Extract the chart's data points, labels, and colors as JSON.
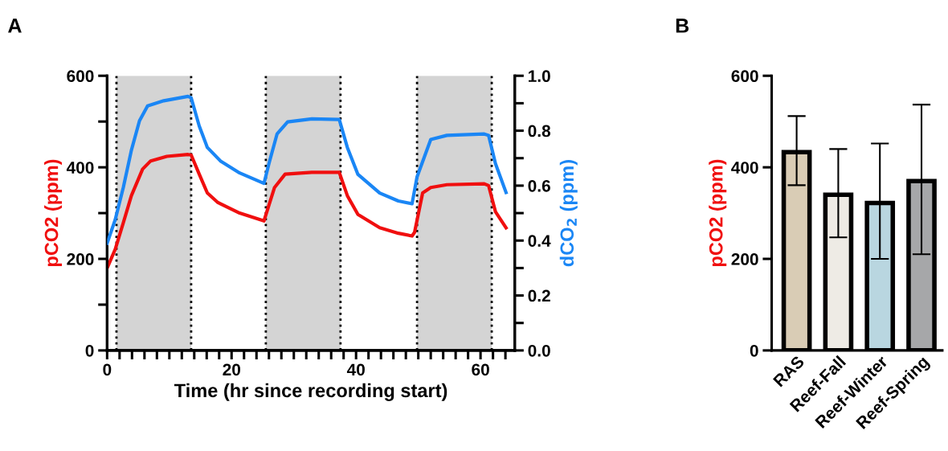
{
  "chart_data": [
    {
      "type": "line",
      "xlabel": "Time (hr since recording start)",
      "ylabel": "pCO2 (ppm)",
      "y2label": "dCO$_{2}$ (ppm)",
      "annotations": [
        "A"
      ],
      "xlim": [
        0,
        65.5
      ],
      "xticks": [
        0,
        {
          "value": 2,
          "label": null
        },
        {
          "value": 4,
          "label": null
        },
        {
          "value": 6,
          "label": null
        },
        {
          "value": 8,
          "label": null
        },
        {
          "value": 10,
          "label": null
        },
        {
          "value": 12,
          "label": null
        },
        {
          "value": 14,
          "label": null
        },
        {
          "value": 16,
          "label": null
        },
        {
          "value": 18,
          "label": null
        },
        20,
        {
          "value": 22,
          "label": null
        },
        {
          "value": 24,
          "label": null
        },
        {
          "value": 26,
          "label": null
        },
        {
          "value": 28,
          "label": null
        },
        {
          "value": 30,
          "label": null
        },
        {
          "value": 32,
          "label": null
        },
        {
          "value": 34,
          "label": null
        },
        {
          "value": 36,
          "label": null
        },
        {
          "value": 38,
          "label": null
        },
        40,
        {
          "value": 42,
          "label": null
        },
        {
          "value": 44,
          "label": null
        },
        {
          "value": 46,
          "label": null
        },
        {
          "value": 48,
          "label": null
        },
        {
          "value": 50,
          "label": null
        },
        {
          "value": 52,
          "label": null
        },
        {
          "value": 54,
          "label": null
        },
        {
          "value": 56,
          "label": null
        },
        {
          "value": 58,
          "label": null
        },
        60,
        {
          "value": 62,
          "label": null
        },
        {
          "value": 64,
          "label": null
        }
      ],
      "ylim": [
        0,
        600
      ],
      "yticks": [
        0,
        {
          "value": 100,
          "label": null
        },
        200,
        {
          "value": 300,
          "label": null
        },
        400,
        {
          "value": 500,
          "label": null
        },
        600
      ],
      "y2lim": [
        0,
        1.0
      ],
      "y2ticks": [
        {
          "value": 0,
          "label": "0.0"
        },
        {
          "value": 0.1,
          "label": null
        },
        {
          "value": 0.2,
          "label": "0.2"
        },
        {
          "value": 0.3,
          "label": null
        },
        {
          "value": 0.4,
          "label": "0.4"
        },
        {
          "value": 0.5,
          "label": null
        },
        {
          "value": 0.6,
          "label": "0.6"
        },
        {
          "value": 0.7,
          "label": null
        },
        {
          "value": 0.8,
          "label": "0.8"
        },
        {
          "value": 0.9,
          "label": null
        },
        {
          "value": 1.0,
          "label": "1.0"
        }
      ],
      "grid": false,
      "legend": false,
      "marker": "none",
      "line_style": "solid",
      "bands": [
        {
          "axis": "x",
          "from": 1.5,
          "to": 13.5,
          "color": "#d4d4d4"
        },
        {
          "axis": "x",
          "from": 25.5,
          "to": 37.5,
          "color": "#d4d4d4"
        },
        {
          "axis": "x",
          "from": 49.8,
          "to": 61.8,
          "color": "#d4d4d4"
        }
      ],
      "ref_lines": [
        {
          "axis": "x",
          "value": 1.5,
          "color": "#000000",
          "line_style": "dotted"
        },
        {
          "axis": "x",
          "value": 13.5,
          "color": "#000000",
          "line_style": "dotted"
        },
        {
          "axis": "x",
          "value": 25.5,
          "color": "#000000",
          "line_style": "dotted"
        },
        {
          "axis": "x",
          "value": 37.5,
          "color": "#000000",
          "line_style": "dotted"
        },
        {
          "axis": "x",
          "value": 49.8,
          "color": "#000000",
          "line_style": "dotted"
        },
        {
          "axis": "x",
          "value": 61.8,
          "color": "#000000",
          "line_style": "dotted"
        }
      ],
      "series": [
        {
          "color": "#f00f0f",
          "x": [
            0,
            1.3,
            2.6,
            3.9,
            5.7,
            7.0,
            9.6,
            13.0,
            13.5,
            14.8,
            16.1,
            17.8,
            21.3,
            25.2,
            26.9,
            28.6,
            32.9,
            37.3,
            38.6,
            40.3,
            43.8,
            46.8,
            49.0,
            49.4,
            50.7,
            52.0,
            54.6,
            60.6,
            61.3,
            62.4,
            64.1
          ],
          "values": [
            180,
            221,
            279,
            338,
            396,
            414,
            424,
            428,
            427,
            385,
            344,
            323,
            300,
            283,
            356,
            385,
            389,
            389,
            338,
            297,
            268,
            256,
            250,
            258,
            344,
            356,
            362,
            364,
            360,
            303,
            268
          ]
        },
        {
          "color": "#1a86f5",
          "axis": "y2",
          "x": [
            0,
            1.3,
            2.6,
            3.9,
            5.2,
            6.5,
            9.1,
            13.0,
            13.5,
            14.8,
            16.1,
            18.2,
            21.3,
            25.2,
            26.0,
            27.3,
            29.0,
            32.9,
            37.3,
            38.6,
            40.3,
            43.8,
            46.8,
            49.0,
            49.8,
            52.0,
            54.6,
            60.6,
            61.3,
            62.4,
            64.1
          ],
          "values": [
            0.39,
            0.476,
            0.593,
            0.729,
            0.836,
            0.89,
            0.909,
            0.925,
            0.92,
            0.817,
            0.739,
            0.69,
            0.646,
            0.608,
            0.68,
            0.788,
            0.832,
            0.843,
            0.841,
            0.739,
            0.641,
            0.573,
            0.544,
            0.534,
            0.632,
            0.768,
            0.783,
            0.788,
            0.783,
            0.68,
            0.575
          ]
        }
      ]
    },
    {
      "type": "bar",
      "ylabel": "pCO2 (ppm)",
      "annotations": [
        "B"
      ],
      "categories": [
        "RAS",
        "Reef-Fall",
        "Reef-Winter",
        "Reef-Spring"
      ],
      "ylim": [
        0,
        600
      ],
      "yticks": [
        0,
        200,
        400,
        600
      ],
      "grid": false,
      "legend": false,
      "series": [
        {
          "colors": [
            "#d9ccb5",
            "#eeebe5",
            "#b9d6e0",
            "#a6a7a9"
          ],
          "values": [
            433,
            340,
            322,
            370
          ],
          "errors": [
            [
              361,
              512
            ],
            [
              247,
              440
            ],
            [
              200,
              452
            ],
            [
              210,
              537
            ]
          ]
        }
      ]
    }
  ]
}
